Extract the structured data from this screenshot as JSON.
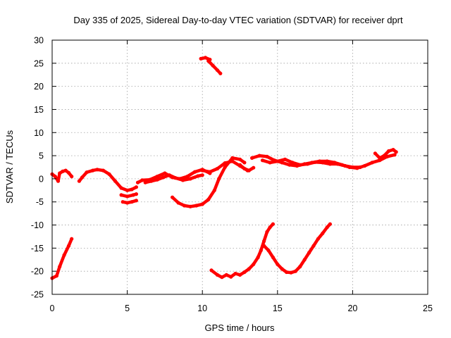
{
  "chart_data": {
    "type": "scatter",
    "title": "Day 335 of 2025, Sidereal Day-to-day VTEC variation (SDTVAR) for receiver dprt",
    "xlabel": "GPS time / hours",
    "ylabel": "SDTVAR / TECUs",
    "xlim": [
      0,
      25
    ],
    "ylim": [
      -25,
      30
    ],
    "xticks": [
      0,
      5,
      10,
      15,
      20,
      25
    ],
    "yticks": [
      -25,
      -20,
      -15,
      -10,
      -5,
      0,
      5,
      10,
      15,
      20,
      25,
      30
    ],
    "grid": true,
    "color": "#ff0000",
    "series": [
      {
        "name": "seg-1",
        "x": [
          0.0,
          0.3,
          0.5,
          0.8,
          1.1,
          1.3
        ],
        "y": [
          -21.5,
          -21.0,
          -19.0,
          -16.5,
          -14.5,
          -13.0
        ]
      },
      {
        "name": "seg-2",
        "x": [
          0.0,
          0.2,
          0.4,
          0.5,
          0.7,
          0.9,
          1.1,
          1.3
        ],
        "y": [
          1.0,
          0.5,
          -0.5,
          1.2,
          1.6,
          1.8,
          1.3,
          0.5
        ]
      },
      {
        "name": "seg-3",
        "x": [
          1.8,
          2.0,
          2.3,
          2.7,
          3.0,
          3.4,
          3.8,
          4.2,
          4.6,
          5.0,
          5.3,
          5.6
        ],
        "y": [
          -0.5,
          0.3,
          1.4,
          1.8,
          2.0,
          1.8,
          1.0,
          -0.5,
          -2.0,
          -2.5,
          -2.3,
          -1.8
        ]
      },
      {
        "name": "seg-4",
        "x": [
          4.6,
          5.0,
          5.4,
          5.6
        ],
        "y": [
          -3.5,
          -3.8,
          -3.5,
          -3.3
        ]
      },
      {
        "name": "seg-5",
        "x": [
          4.7,
          5.0,
          5.3,
          5.6
        ],
        "y": [
          -5.0,
          -5.2,
          -5.0,
          -4.7
        ]
      },
      {
        "name": "seg-6",
        "x": [
          5.7,
          6.0,
          6.5,
          7.0,
          7.5,
          8.0,
          8.5,
          9.0,
          9.5,
          10.0,
          10.5
        ],
        "y": [
          -0.8,
          -0.3,
          -0.2,
          0.5,
          1.2,
          0.3,
          0.0,
          0.5,
          1.5,
          2.0,
          1.2
        ]
      },
      {
        "name": "seg-7",
        "x": [
          6.2,
          6.6,
          7.0,
          7.4,
          7.8,
          8.2,
          8.7,
          9.2,
          9.7,
          10.0
        ],
        "y": [
          -0.8,
          -0.5,
          -0.2,
          0.3,
          0.8,
          0.2,
          -0.3,
          0.0,
          0.6,
          0.8
        ]
      },
      {
        "name": "seg-8",
        "x": [
          8.0,
          8.4,
          8.8,
          9.2,
          9.6,
          10.0,
          10.4,
          10.8,
          11.1,
          11.5,
          12.0,
          12.5,
          12.8
        ],
        "y": [
          -4.0,
          -5.2,
          -5.8,
          -6.0,
          -5.8,
          -5.5,
          -4.5,
          -2.5,
          0.0,
          2.5,
          4.5,
          4.2,
          3.5
        ]
      },
      {
        "name": "seg-9",
        "x": [
          10.0,
          10.5,
          11.0,
          11.5,
          12.0,
          12.5,
          13.0
        ],
        "y": [
          1.8,
          1.5,
          2.2,
          3.4,
          3.8,
          2.8,
          1.8
        ]
      },
      {
        "name": "seg-10",
        "x": [
          12.5,
          12.8,
          13.1,
          13.4
        ],
        "y": [
          3.0,
          2.2,
          1.8,
          2.4
        ]
      },
      {
        "name": "seg-11",
        "x": [
          13.3,
          13.8,
          14.3,
          14.8,
          15.3,
          15.8,
          16.3,
          16.8,
          17.3,
          17.8,
          18.3,
          18.8,
          19.3,
          19.8,
          20.3,
          20.8,
          21.3,
          21.8,
          22.3,
          22.8
        ],
        "y": [
          4.5,
          5.0,
          4.8,
          4.0,
          3.5,
          3.0,
          2.8,
          3.2,
          3.5,
          3.8,
          3.8,
          3.5,
          3.0,
          2.5,
          2.3,
          2.8,
          3.5,
          4.0,
          4.8,
          5.2
        ]
      },
      {
        "name": "seg-12",
        "x": [
          14.0,
          14.5,
          15.0,
          15.5,
          16.0,
          16.5,
          17.0,
          17.5,
          18.0,
          18.5,
          19.0,
          19.5,
          20.0,
          20.5
        ],
        "y": [
          4.0,
          3.5,
          3.8,
          4.2,
          3.5,
          3.0,
          3.2,
          3.6,
          3.5,
          3.2,
          3.2,
          2.8,
          2.5,
          2.5
        ]
      },
      {
        "name": "seg-13",
        "x": [
          21.5,
          21.8,
          22.1,
          22.4,
          22.7,
          22.9
        ],
        "y": [
          5.5,
          4.5,
          5.0,
          6.0,
          6.3,
          5.8
        ]
      },
      {
        "name": "seg-14",
        "x": [
          9.9,
          10.2,
          10.5
        ],
        "y": [
          26.0,
          26.2,
          25.8
        ]
      },
      {
        "name": "seg-15",
        "x": [
          10.4,
          10.7,
          11.0,
          11.2
        ],
        "y": [
          25.5,
          24.5,
          23.5,
          22.8
        ]
      },
      {
        "name": "seg-16",
        "x": [
          10.6,
          11.0,
          11.3,
          11.6,
          11.9,
          12.2,
          12.5,
          12.8,
          13.1,
          13.4,
          13.7,
          13.9,
          14.1,
          14.3,
          14.5,
          14.7
        ],
        "y": [
          -19.8,
          -20.8,
          -21.3,
          -20.8,
          -21.2,
          -20.5,
          -20.8,
          -20.2,
          -19.5,
          -18.5,
          -17.0,
          -15.5,
          -13.5,
          -11.5,
          -10.5,
          -9.8
        ]
      },
      {
        "name": "seg-17",
        "x": [
          14.1,
          14.4,
          14.7,
          15.0,
          15.3,
          15.6,
          15.9,
          16.2,
          16.5,
          16.8,
          17.1,
          17.4,
          17.7,
          18.0,
          18.3,
          18.5
        ],
        "y": [
          -14.5,
          -15.5,
          -17.0,
          -18.5,
          -19.5,
          -20.2,
          -20.3,
          -20.0,
          -19.0,
          -17.5,
          -16.0,
          -14.5,
          -13.0,
          -11.8,
          -10.5,
          -9.8
        ]
      }
    ]
  }
}
